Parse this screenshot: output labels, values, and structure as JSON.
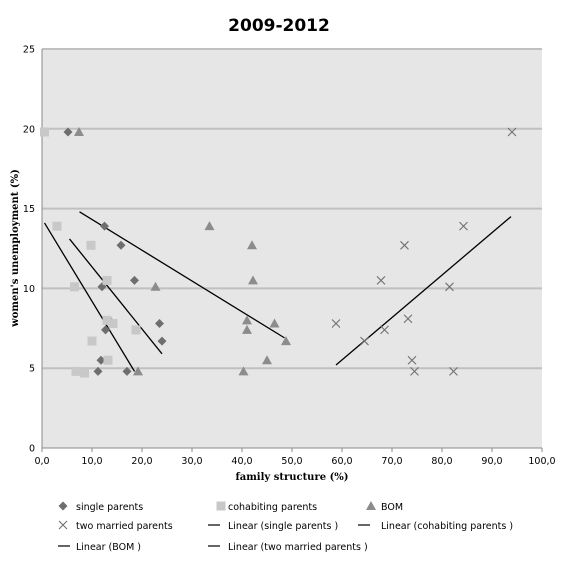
{
  "chart_data": {
    "type": "scatter",
    "title": "2009-2012",
    "xlabel": "family structure (%)",
    "ylabel": "women's unemployment (%)",
    "xlim": [
      0,
      100
    ],
    "ylim": [
      0,
      25
    ],
    "x_ticks": [
      "0,0",
      "10,0",
      "20,0",
      "30,0",
      "40,0",
      "50,0",
      "60,0",
      "70,0",
      "80,0",
      "90,0",
      "100,0"
    ],
    "y_ticks": [
      "0",
      "5",
      "10",
      "15",
      "20",
      "25"
    ],
    "grid": "horizontal",
    "legend_position": "bottom",
    "colors": {
      "plot_background": "#e6e6e6",
      "grid": "#c0c0c0",
      "single": "#6e6e6e",
      "cohabiting": "#c8c8c8",
      "bom": "#8c8c8c",
      "married": "#707070",
      "trend": "#000000"
    },
    "series": [
      {
        "name": "single parents",
        "marker": "diamond",
        "points": [
          [
            5.2,
            19.8
          ],
          [
            12.5,
            13.9
          ],
          [
            15.8,
            12.7
          ],
          [
            18.5,
            10.5
          ],
          [
            12.0,
            10.1
          ],
          [
            13.5,
            8.0
          ],
          [
            23.5,
            7.8
          ],
          [
            12.7,
            7.4
          ],
          [
            24.0,
            6.7
          ],
          [
            11.8,
            5.5
          ],
          [
            11.2,
            4.8
          ],
          [
            17.0,
            4.8
          ]
        ]
      },
      {
        "name": "cohabiting parents",
        "marker": "square",
        "points": [
          [
            0.5,
            19.8
          ],
          [
            3.0,
            13.9
          ],
          [
            9.8,
            12.7
          ],
          [
            13.0,
            10.5
          ],
          [
            6.5,
            10.1
          ],
          [
            13.0,
            8.0
          ],
          [
            14.2,
            7.8
          ],
          [
            18.8,
            7.4
          ],
          [
            10.0,
            6.7
          ],
          [
            13.2,
            5.5
          ],
          [
            6.8,
            4.8
          ],
          [
            8.5,
            4.7
          ]
        ]
      },
      {
        "name": "BOM",
        "marker": "triangle",
        "points": [
          [
            7.4,
            19.8
          ],
          [
            33.5,
            13.9
          ],
          [
            42.0,
            12.7
          ],
          [
            42.2,
            10.5
          ],
          [
            22.7,
            10.1
          ],
          [
            41.0,
            8.0
          ],
          [
            46.5,
            7.8
          ],
          [
            41.0,
            7.4
          ],
          [
            48.8,
            6.7
          ],
          [
            45.0,
            5.5
          ],
          [
            40.3,
            4.8
          ],
          [
            19.2,
            4.8
          ]
        ]
      },
      {
        "name": "two married parents",
        "marker": "x",
        "points": [
          [
            94.0,
            19.8
          ],
          [
            84.3,
            13.9
          ],
          [
            72.5,
            12.7
          ],
          [
            67.8,
            10.5
          ],
          [
            81.5,
            10.1
          ],
          [
            73.2,
            8.1
          ],
          [
            58.8,
            7.8
          ],
          [
            68.5,
            7.4
          ],
          [
            64.5,
            6.7
          ],
          [
            74.0,
            5.5
          ],
          [
            74.5,
            4.8
          ],
          [
            82.3,
            4.8
          ]
        ]
      }
    ],
    "trendlines": [
      {
        "name": "Linear (single parents )",
        "from": [
          5.5,
          13.1
        ],
        "to": [
          24.0,
          5.9
        ]
      },
      {
        "name": "Linear (cohabiting parents )",
        "from": [
          0.5,
          14.1
        ],
        "to": [
          18.5,
          4.8
        ]
      },
      {
        "name": "Linear (BOM )",
        "from": [
          7.5,
          14.8
        ],
        "to": [
          48.5,
          6.9
        ]
      },
      {
        "name": "Linear (two married parents )",
        "from": [
          58.8,
          5.2
        ],
        "to": [
          93.8,
          14.5
        ]
      }
    ],
    "legend": [
      {
        "label": "single parents",
        "marker": "diamond"
      },
      {
        "label": "cohabiting parents",
        "marker": "square"
      },
      {
        "label": "BOM",
        "marker": "triangle"
      },
      {
        "label": "two married parents",
        "marker": "x"
      },
      {
        "label": "Linear (single parents )",
        "marker": "line"
      },
      {
        "label": "Linear (cohabiting parents )",
        "marker": "line"
      },
      {
        "label": "Linear (BOM )",
        "marker": "line"
      },
      {
        "label": "Linear (two married parents )",
        "marker": "line"
      }
    ]
  }
}
